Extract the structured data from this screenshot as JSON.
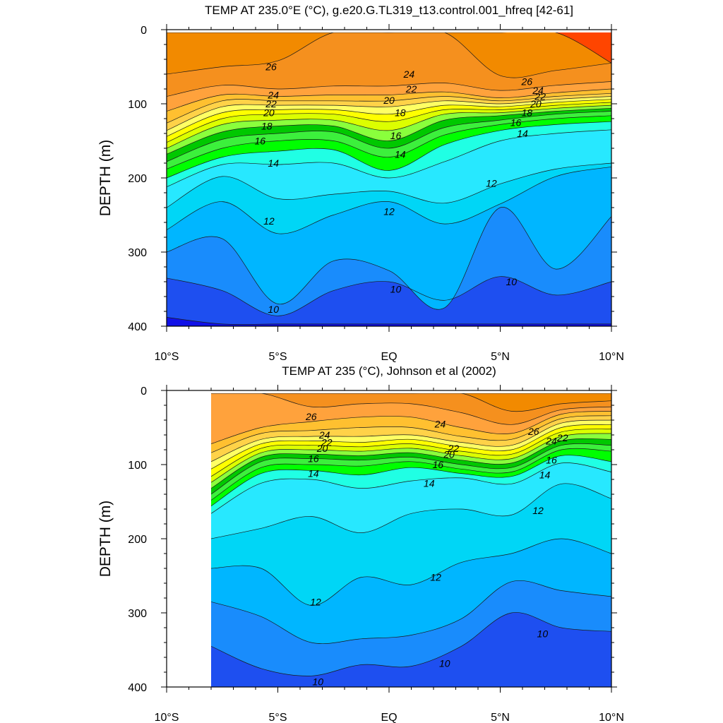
{
  "chart_data": [
    {
      "type": "contour",
      "title": "TEMP AT 235.0°E (°C), g.e20.G.TL319_t13.control.001_hfreq [42-61]",
      "ylabel": "DEPTH (m)",
      "xlim": [
        -10,
        10
      ],
      "ylim": [
        400,
        0
      ],
      "x_ticks": [
        -10,
        -5,
        0,
        5,
        10
      ],
      "x_tick_labels": [
        "10°S",
        "5°S",
        "EQ",
        "5°N",
        "10°N"
      ],
      "y_ticks": [
        0,
        100,
        200,
        300,
        400
      ],
      "y_tick_labels": [
        "0",
        "100",
        "200",
        "300",
        "400"
      ],
      "data_x_range": [
        -10,
        10
      ],
      "contour_interval": 1,
      "contours": [
        {
          "level": 9,
          "depths": [
            388,
            397,
            397,
            397,
            397,
            397,
            397,
            397,
            397
          ]
        },
        {
          "level": 10,
          "depths": [
            335,
            352,
            386,
            352,
            340,
            365,
            333,
            358,
            340
          ]
        },
        {
          "level": 11,
          "depths": [
            300,
            282,
            370,
            312,
            325,
            375,
            240,
            323,
            252
          ]
        },
        {
          "level": 12,
          "depths": [
            270,
            232,
            275,
            250,
            232,
            262,
            235,
            198,
            185
          ]
        },
        {
          "level": 13,
          "depths": [
            240,
            198,
            228,
            222,
            218,
            234,
            208,
            188,
            180
          ]
        },
        {
          "level": 14,
          "depths": [
            212,
            182,
            182,
            180,
            200,
            178,
            150,
            140,
            135
          ]
        },
        {
          "level": 15,
          "depths": [
            200,
            172,
            164,
            162,
            190,
            155,
            136,
            128,
            124
          ]
        },
        {
          "level": 16,
          "depths": [
            188,
            160,
            150,
            150,
            172,
            142,
            128,
            120,
            116
          ]
        },
        {
          "level": 17,
          "depths": [
            178,
            148,
            140,
            138,
            160,
            132,
            122,
            114,
            110
          ]
        },
        {
          "level": 18,
          "depths": [
            168,
            138,
            130,
            130,
            150,
            122,
            116,
            110,
            106
          ]
        },
        {
          "level": 19,
          "depths": [
            160,
            128,
            122,
            122,
            136,
            114,
            112,
            106,
            102
          ]
        },
        {
          "level": 20,
          "depths": [
            152,
            120,
            114,
            114,
            124,
            108,
            108,
            102,
            98
          ]
        },
        {
          "level": 21,
          "depths": [
            144,
            112,
            108,
            108,
            114,
            102,
            104,
            98,
            94
          ]
        },
        {
          "level": 22,
          "depths": [
            136,
            104,
            102,
            102,
            104,
            96,
            100,
            94,
            90
          ]
        },
        {
          "level": 23,
          "depths": [
            126,
            96,
            96,
            96,
            96,
            90,
            96,
            90,
            86
          ]
        },
        {
          "level": 24,
          "depths": [
            110,
            88,
            90,
            88,
            88,
            84,
            92,
            85,
            80
          ]
        },
        {
          "level": 25,
          "depths": [
            90,
            75,
            80,
            76,
            76,
            72,
            82,
            75,
            70
          ]
        },
        {
          "level": 26,
          "depths": [
            60,
            50,
            42,
            0,
            0,
            0,
            62,
            55,
            45
          ]
        },
        {
          "level": 27,
          "depths": [
            0,
            0,
            0,
            0,
            0,
            0,
            0,
            0,
            45
          ]
        }
      ],
      "contour_labels": [
        {
          "text": "26",
          "x": -5.3,
          "y": 50
        },
        {
          "text": "24",
          "x": -5.2,
          "y": 88
        },
        {
          "text": "22",
          "x": -5.3,
          "y": 100
        },
        {
          "text": "20",
          "x": -5.4,
          "y": 112
        },
        {
          "text": "18",
          "x": -5.5,
          "y": 130
        },
        {
          "text": "16",
          "x": -5.8,
          "y": 150
        },
        {
          "text": "14",
          "x": -5.2,
          "y": 180
        },
        {
          "text": "12",
          "x": -5.4,
          "y": 258
        },
        {
          "text": "10",
          "x": -5.2,
          "y": 377
        },
        {
          "text": "24",
          "x": 0.9,
          "y": 60
        },
        {
          "text": "22",
          "x": 1.0,
          "y": 80
        },
        {
          "text": "20",
          "x": 0.0,
          "y": 95
        },
        {
          "text": "18",
          "x": 0.5,
          "y": 112
        },
        {
          "text": "16",
          "x": 0.3,
          "y": 143
        },
        {
          "text": "14",
          "x": 0.5,
          "y": 168
        },
        {
          "text": "12",
          "x": 0.0,
          "y": 245
        },
        {
          "text": "10",
          "x": 0.3,
          "y": 350
        },
        {
          "text": "26",
          "x": 6.2,
          "y": 70
        },
        {
          "text": "24",
          "x": 6.7,
          "y": 82
        },
        {
          "text": "22",
          "x": 6.8,
          "y": 90
        },
        {
          "text": "20",
          "x": 6.6,
          "y": 100
        },
        {
          "text": "18",
          "x": 6.2,
          "y": 112
        },
        {
          "text": "16",
          "x": 5.7,
          "y": 125
        },
        {
          "text": "14",
          "x": 6.0,
          "y": 140
        },
        {
          "text": "12",
          "x": 4.6,
          "y": 207
        },
        {
          "text": "10",
          "x": 5.5,
          "y": 340
        }
      ]
    },
    {
      "type": "contour",
      "title": "TEMP AT 235 (°C), Johnson et al (2002)",
      "ylabel": "DEPTH (m)",
      "xlim": [
        -10,
        10
      ],
      "ylim": [
        400,
        0
      ],
      "x_ticks": [
        -10,
        -5,
        0,
        5,
        10
      ],
      "x_tick_labels": [
        "10°S",
        "5°S",
        "EQ",
        "5°N",
        "10°N"
      ],
      "y_ticks": [
        0,
        100,
        200,
        300,
        400
      ],
      "y_tick_labels": [
        "0",
        "100",
        "200",
        "300",
        "400"
      ],
      "data_x_range": [
        -8,
        10
      ],
      "contour_interval": 1,
      "contours": [
        {
          "level": 10,
          "depths": [
            345,
            375,
            385,
            370,
            372,
            345,
            300,
            320,
            325
          ]
        },
        {
          "level": 11,
          "depths": [
            285,
            305,
            340,
            335,
            330,
            308,
            258,
            270,
            278
          ]
        },
        {
          "level": 12,
          "depths": [
            240,
            240,
            290,
            252,
            262,
            232,
            220,
            200,
            220
          ]
        },
        {
          "level": 13,
          "depths": [
            200,
            186,
            170,
            192,
            166,
            160,
            168,
            126,
            146
          ]
        },
        {
          "level": 14,
          "depths": [
            166,
            125,
            120,
            132,
            122,
            118,
            126,
            98,
            110
          ]
        },
        {
          "level": 15,
          "depths": [
            156,
            112,
            108,
            114,
            104,
            112,
            116,
            88,
            96
          ]
        },
        {
          "level": 16,
          "depths": [
            148,
            104,
            100,
            102,
            96,
            106,
            110,
            80,
            82
          ]
        },
        {
          "level": 17,
          "depths": [
            140,
            96,
            92,
            94,
            90,
            100,
            104,
            74,
            74
          ]
        },
        {
          "level": 18,
          "depths": [
            132,
            90,
            86,
            88,
            84,
            94,
            98,
            68,
            66
          ]
        },
        {
          "level": 19,
          "depths": [
            124,
            84,
            80,
            82,
            78,
            88,
            92,
            62,
            58
          ]
        },
        {
          "level": 20,
          "depths": [
            116,
            78,
            74,
            76,
            72,
            82,
            86,
            56,
            52
          ]
        },
        {
          "level": 21,
          "depths": [
            106,
            72,
            68,
            70,
            66,
            76,
            80,
            50,
            46
          ]
        },
        {
          "level": 22,
          "depths": [
            96,
            66,
            62,
            62,
            60,
            70,
            74,
            44,
            40
          ]
        },
        {
          "level": 23,
          "depths": [
            84,
            58,
            54,
            50,
            50,
            62,
            66,
            38,
            34
          ]
        },
        {
          "level": 24,
          "depths": [
            72,
            50,
            42,
            36,
            36,
            50,
            58,
            32,
            28
          ]
        },
        {
          "level": 25,
          "depths": [
            0,
            0,
            22,
            18,
            18,
            30,
            46,
            26,
            22
          ]
        },
        {
          "level": 26,
          "depths": [
            0,
            0,
            0,
            0,
            0,
            0,
            28,
            18,
            14
          ]
        },
        {
          "level": 27,
          "depths": [
            0,
            0,
            0,
            0,
            0,
            0,
            0,
            0,
            0
          ]
        }
      ],
      "contour_labels": [
        {
          "text": "26",
          "x": -3.5,
          "y": 35
        },
        {
          "text": "24",
          "x": -2.9,
          "y": 60
        },
        {
          "text": "22",
          "x": -2.8,
          "y": 70
        },
        {
          "text": "20",
          "x": -3.0,
          "y": 78
        },
        {
          "text": "16",
          "x": -3.4,
          "y": 92
        },
        {
          "text": "14",
          "x": -3.4,
          "y": 112
        },
        {
          "text": "12",
          "x": -3.3,
          "y": 285
        },
        {
          "text": "10",
          "x": -3.2,
          "y": 393
        },
        {
          "text": "24",
          "x": 2.3,
          "y": 45
        },
        {
          "text": "22",
          "x": 2.9,
          "y": 78
        },
        {
          "text": "20",
          "x": 2.7,
          "y": 86
        },
        {
          "text": "16",
          "x": 2.2,
          "y": 100
        },
        {
          "text": "14",
          "x": 1.8,
          "y": 125
        },
        {
          "text": "12",
          "x": 2.1,
          "y": 252
        },
        {
          "text": "10",
          "x": 2.5,
          "y": 368
        },
        {
          "text": "26",
          "x": 6.5,
          "y": 55
        },
        {
          "text": "24",
          "x": 7.3,
          "y": 68
        },
        {
          "text": "22",
          "x": 7.8,
          "y": 64
        },
        {
          "text": "16",
          "x": 7.3,
          "y": 94
        },
        {
          "text": "14",
          "x": 7.0,
          "y": 114
        },
        {
          "text": "12",
          "x": 6.7,
          "y": 162
        },
        {
          "text": "10",
          "x": 6.9,
          "y": 328
        }
      ]
    }
  ]
}
